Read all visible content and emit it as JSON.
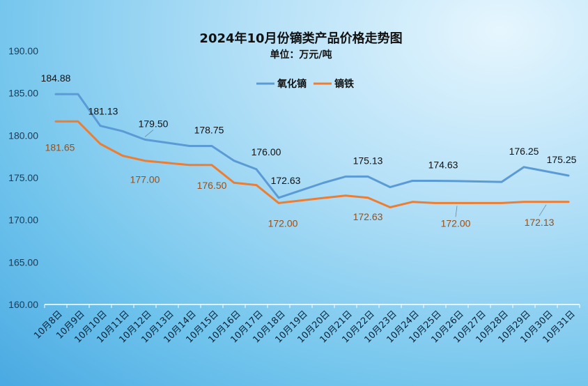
{
  "chart_data": {
    "type": "line",
    "title": "2024年10月份镝类产品价格走势图",
    "subtitle": "单位：万元/吨",
    "ylim": [
      160,
      190
    ],
    "yticks": [
      "160.00",
      "165.00",
      "170.00",
      "175.00",
      "180.00",
      "185.00",
      "190.00"
    ],
    "legend_position": "top-center",
    "categories": [
      "10月8日",
      "10月9日",
      "10月10日",
      "10月11日",
      "10月12日",
      "10月13日",
      "10月14日",
      "10月15日",
      "10月16日",
      "10月17日",
      "10月18日",
      "10月19日",
      "10月20日",
      "10月21日",
      "10月22日",
      "10月23日",
      "10月24日",
      "10月25日",
      "10月26日",
      "10月27日",
      "10月28日",
      "10月29日",
      "10月30日",
      "10月31日"
    ],
    "series": [
      {
        "name": "氧化镝",
        "color": "#5b9bd5",
        "values": [
          184.88,
          184.88,
          181.13,
          180.5,
          179.5,
          179.13,
          178.75,
          178.75,
          177.0,
          176.0,
          172.63,
          173.5,
          174.38,
          175.13,
          175.13,
          173.88,
          174.63,
          174.63,
          174.6,
          174.55,
          174.5,
          176.25,
          175.75,
          175.25
        ],
        "data_labels": [
          {
            "index": 0,
            "text": "184.88"
          },
          {
            "index": 2,
            "text": "181.13"
          },
          {
            "index": 4,
            "text": "179.50"
          },
          {
            "index": 7,
            "text": "178.75"
          },
          {
            "index": 9,
            "text": "176.00"
          },
          {
            "index": 10,
            "text": "172.63"
          },
          {
            "index": 14,
            "text": "175.13"
          },
          {
            "index": 17,
            "text": "174.63"
          },
          {
            "index": 21,
            "text": "176.25"
          },
          {
            "index": 23,
            "text": "175.25"
          }
        ]
      },
      {
        "name": "镝铁",
        "color": "#ed7d31",
        "values": [
          181.65,
          181.65,
          179.0,
          177.6,
          177.0,
          176.75,
          176.5,
          176.5,
          174.4,
          174.13,
          172.0,
          172.3,
          172.6,
          172.88,
          172.63,
          171.5,
          172.13,
          172.0,
          172.0,
          172.0,
          172.0,
          172.13,
          172.13,
          172.13
        ],
        "data_labels": [
          {
            "index": 0,
            "text": "181.65"
          },
          {
            "index": 4,
            "text": "177.00"
          },
          {
            "index": 7,
            "text": "176.50"
          },
          {
            "index": 10,
            "text": "172.00"
          },
          {
            "index": 14,
            "text": "172.63"
          },
          {
            "index": 18,
            "text": "172.00"
          },
          {
            "index": 22,
            "text": "172.13"
          }
        ]
      }
    ]
  }
}
